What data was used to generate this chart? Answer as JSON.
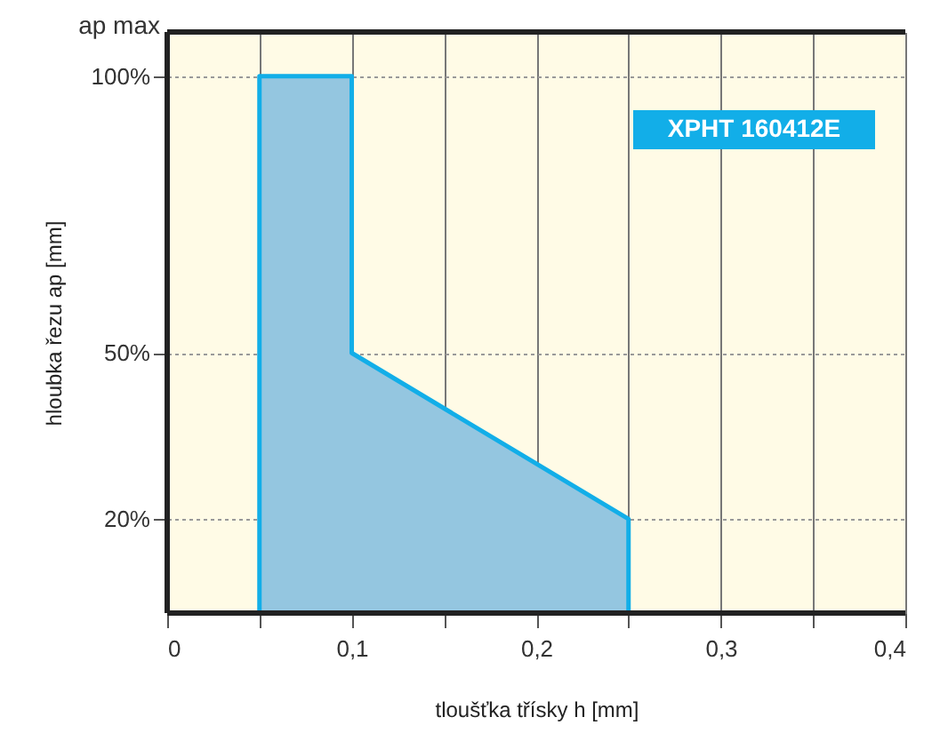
{
  "chart_data": {
    "type": "area",
    "x": [
      0.05,
      0.1,
      0.1,
      0.25
    ],
    "series": [
      {
        "color": "#94c6e0",
        "values": [
          100,
          100,
          50,
          20
        ]
      }
    ],
    "xlabel": "tloušťka třísky h [mm]",
    "ylabel": "hloubka řezu ap [mm]",
    "annotations": [
      "ap max",
      "XPHT 160412E"
    ],
    "xlim": [
      0,
      0.4
    ],
    "xticks": [
      0,
      {
        "value": 0.05,
        "label": null
      },
      {
        "value": 0.1,
        "label": "0,1"
      },
      {
        "value": 0.15,
        "label": null
      },
      {
        "value": 0.2,
        "label": "0,2"
      },
      {
        "value": 0.25,
        "label": null
      },
      {
        "value": 0.3,
        "label": "0,3"
      },
      {
        "value": 0.35,
        "label": null
      },
      {
        "value": 0.4,
        "label": "0,4"
      }
    ],
    "ylim": [
      3,
      108
    ],
    "yticks": [
      {
        "value": 20,
        "label": "20%"
      },
      {
        "value": 50,
        "label": "50%"
      },
      {
        "value": 100,
        "label": "100%"
      }
    ],
    "grid": true
  }
}
